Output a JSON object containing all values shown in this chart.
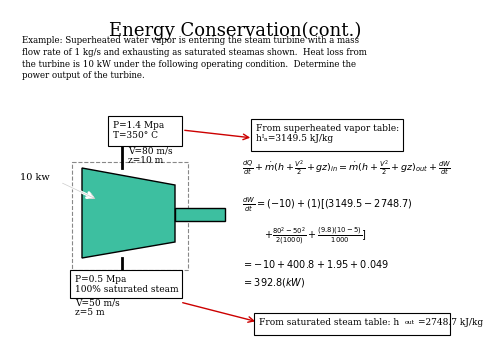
{
  "title": "Energy Conservation(cont.)",
  "title_fontsize": 13,
  "background_color": "#ffffff",
  "example_text": "Example: Superheated water vapor is entering the steam turbine with a mass\nflow rate of 1 kg/s and exhausting as saturated steamas shown.  Heat loss from\nthe turbine is 10 kW under the following operating condition.  Determine the\npower output of the turbine.",
  "box_in_label": "P=1.4 Mpa\nT=350° C",
  "box_in_extra": "V=80 m/s\nz=10 m",
  "box_out_label": "P=0.5 Mpa\n100% saturated steam",
  "box_out_extra": "V=50 m/s\nz=5 m",
  "label_10kw": "10 kw",
  "box_vapor_line1": "From superheated vapor table:",
  "box_vapor_line2": "hᴵₙ=3149.5 kJ/kg",
  "box_sat_text": "From saturated steam table: hₒᵤₜ=2748.7 kJ/kg",
  "turbine_color": "#3dbfa0",
  "turbine_stroke": "#000000",
  "arrow_color": "#cc0000"
}
